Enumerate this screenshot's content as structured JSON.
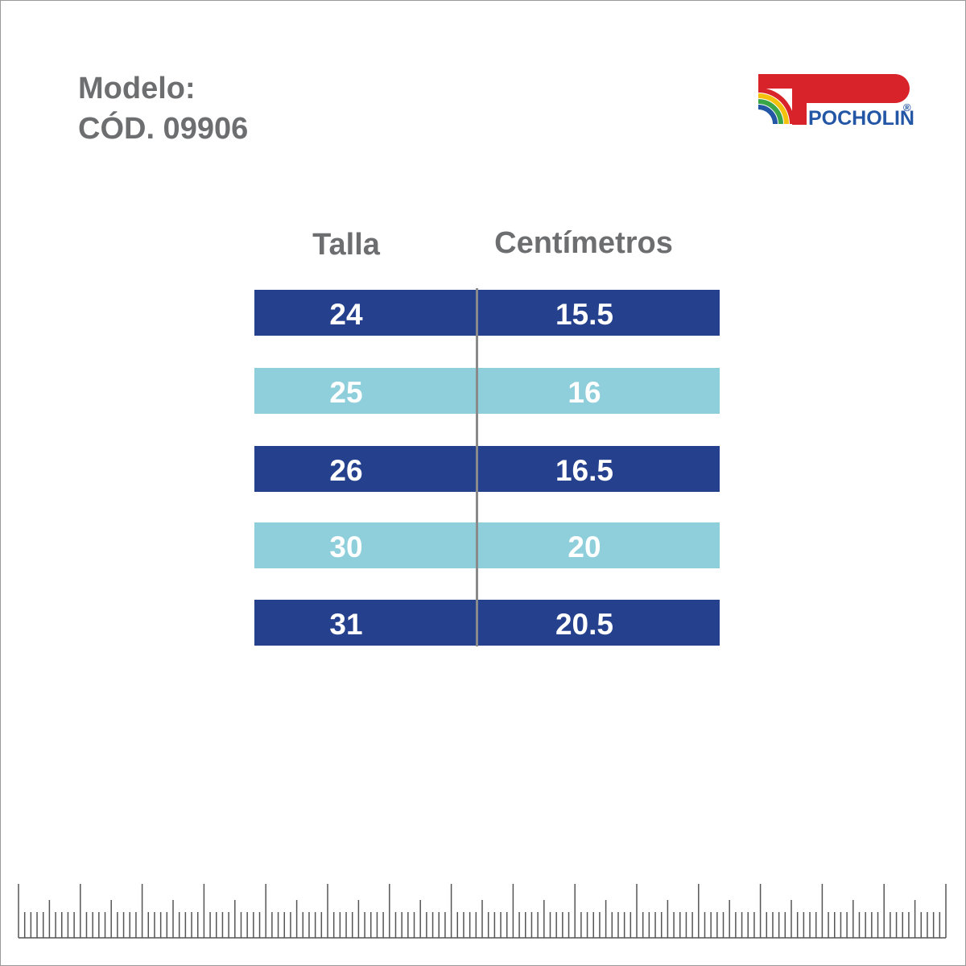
{
  "header": {
    "title": "Modelo:",
    "code": "CÓD. 09906"
  },
  "logo": {
    "name": "POCHOLIN",
    "mark": "®"
  },
  "table": {
    "columns": [
      "Talla",
      "Centímetros"
    ],
    "rows": [
      [
        "24",
        "15.5"
      ],
      [
        "25",
        "16"
      ],
      [
        "26",
        "16.5"
      ],
      [
        "30",
        "20"
      ],
      [
        "31",
        "20.5"
      ]
    ]
  }
}
